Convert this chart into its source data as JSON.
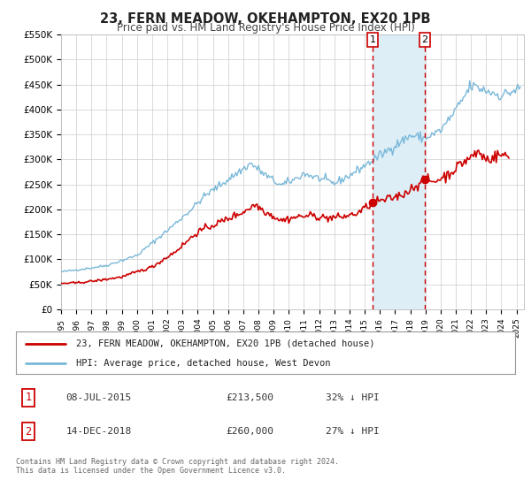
{
  "title": "23, FERN MEADOW, OKEHAMPTON, EX20 1PB",
  "subtitle": "Price paid vs. HM Land Registry's House Price Index (HPI)",
  "legend_line1": "23, FERN MEADOW, OKEHAMPTON, EX20 1PB (detached house)",
  "legend_line2": "HPI: Average price, detached house, West Devon",
  "transaction1_label": "1",
  "transaction1_date": "08-JUL-2015",
  "transaction1_price": "£213,500",
  "transaction1_hpi": "32% ↓ HPI",
  "transaction1_date_num": 2015.52,
  "transaction1_value": 213500,
  "transaction2_label": "2",
  "transaction2_date": "14-DEC-2018",
  "transaction2_price": "£260,000",
  "transaction2_hpi": "27% ↓ HPI",
  "transaction2_date_num": 2018.95,
  "transaction2_value": 260000,
  "hpi_color": "#7ab8d9",
  "price_color": "#cc0000",
  "marker_color": "#cc0000",
  "vline_color": "#cc0000",
  "shading_color": "#ddeef7",
  "background_color": "#ffffff",
  "grid_color": "#cccccc",
  "footer_text": "Contains HM Land Registry data © Crown copyright and database right 2024.\nThis data is licensed under the Open Government Licence v3.0.",
  "ylim": [
    0,
    550000
  ],
  "yticks": [
    0,
    50000,
    100000,
    150000,
    200000,
    250000,
    300000,
    350000,
    400000,
    450000,
    500000,
    550000
  ],
  "xlim_start": 1995.0,
  "xlim_end": 2025.5
}
